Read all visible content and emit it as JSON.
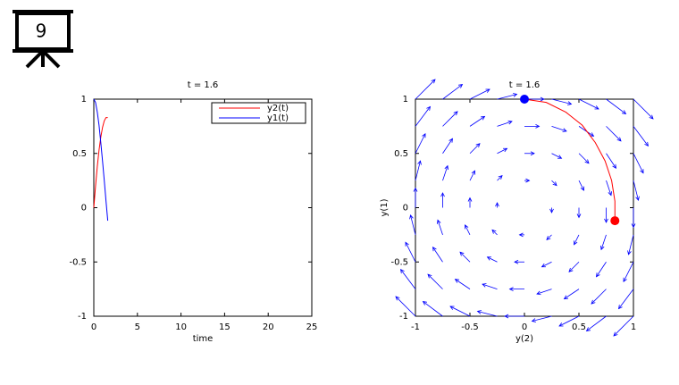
{
  "slide_number": "9",
  "chart_data": [
    {
      "type": "line",
      "title": "t = 1.6",
      "xlabel": "time",
      "xlim": [
        0,
        25
      ],
      "xticks": [
        0,
        5,
        10,
        15,
        20,
        25
      ],
      "ylim": [
        -1,
        1
      ],
      "yticks": [
        -1,
        -0.5,
        0,
        0.5,
        1
      ],
      "x": [
        0,
        0.2,
        0.4,
        0.6,
        0.8,
        1.0,
        1.2,
        1.4,
        1.6
      ],
      "series": [
        {
          "name": "y2(t)",
          "color": "#ff0000",
          "values": [
            0,
            0.2,
            0.38,
            0.53,
            0.65,
            0.74,
            0.8,
            0.83,
            0.83
          ]
        },
        {
          "name": "y1(t)",
          "color": "#0000ff",
          "values": [
            1,
            0.97,
            0.88,
            0.76,
            0.6,
            0.43,
            0.25,
            0.06,
            -0.12
          ]
        }
      ]
    },
    {
      "type": "phase",
      "title": "t = 1.6",
      "xlabel": "y(2)",
      "ylabel": "y(1)",
      "xlim": [
        -1,
        1
      ],
      "xticks": [
        -1,
        -0.5,
        0,
        0.5,
        1
      ],
      "ylim": [
        -1,
        1
      ],
      "yticks": [
        -1,
        -0.5,
        0,
        0.5,
        1
      ],
      "trajectory": {
        "color": "#ff0000",
        "x": [
          0,
          0.2,
          0.38,
          0.53,
          0.65,
          0.74,
          0.8,
          0.83,
          0.83
        ],
        "y": [
          1,
          0.97,
          0.88,
          0.76,
          0.6,
          0.43,
          0.25,
          0.06,
          -0.12
        ]
      },
      "start_color": "#0000ff",
      "end_color": "#ff0000",
      "quiver": {
        "color": "#0000ff",
        "x": [
          -1,
          -0.75,
          -0.5,
          -0.25,
          0,
          0.25,
          0.5,
          0.75,
          1
        ],
        "y": [
          -1,
          -0.75,
          -0.5,
          -0.25,
          0,
          0.25,
          0.5,
          0.75,
          1
        ],
        "u": [
          [
            -1,
            -1,
            -1,
            -1,
            -1,
            -1,
            -1,
            -1,
            -1
          ],
          [
            -0.75,
            -0.75,
            -0.75,
            -0.75,
            -0.75,
            -0.75,
            -0.75,
            -0.75,
            -0.75
          ],
          [
            -0.5,
            -0.5,
            -0.5,
            -0.5,
            -0.5,
            -0.5,
            -0.5,
            -0.5,
            -0.5
          ],
          [
            -0.25,
            -0.25,
            -0.25,
            -0.25,
            -0.25,
            -0.25,
            -0.25,
            -0.25,
            -0.25
          ],
          [
            0,
            0,
            0,
            0,
            0,
            0,
            0,
            0,
            0
          ],
          [
            0.25,
            0.25,
            0.25,
            0.25,
            0.25,
            0.25,
            0.25,
            0.25,
            0.25
          ],
          [
            0.5,
            0.5,
            0.5,
            0.5,
            0.5,
            0.5,
            0.5,
            0.5,
            0.5
          ],
          [
            0.75,
            0.75,
            0.75,
            0.75,
            0.75,
            0.75,
            0.75,
            0.75,
            0.75
          ],
          [
            1,
            1,
            1,
            1,
            1,
            1,
            1,
            1,
            1
          ]
        ],
        "v": [
          [
            1,
            0.75,
            0.5,
            0.25,
            0,
            -0.25,
            -0.5,
            -0.75,
            -1
          ],
          [
            1,
            0.75,
            0.5,
            0.25,
            0,
            -0.25,
            -0.5,
            -0.75,
            -1
          ],
          [
            1,
            0.75,
            0.5,
            0.25,
            0,
            -0.25,
            -0.5,
            -0.75,
            -1
          ],
          [
            1,
            0.75,
            0.5,
            0.25,
            0,
            -0.25,
            -0.5,
            -0.75,
            -1
          ],
          [
            1,
            0.75,
            0.5,
            0.25,
            0,
            -0.25,
            -0.5,
            -0.75,
            -1
          ],
          [
            1,
            0.75,
            0.5,
            0.25,
            0,
            -0.25,
            -0.5,
            -0.75,
            -1
          ],
          [
            1,
            0.75,
            0.5,
            0.25,
            0,
            -0.25,
            -0.5,
            -0.75,
            -1
          ],
          [
            1,
            0.75,
            0.5,
            0.25,
            0,
            -0.25,
            -0.5,
            -0.75,
            -1
          ],
          [
            1,
            0.75,
            0.5,
            0.25,
            0,
            -0.25,
            -0.5,
            -0.75,
            -1
          ]
        ]
      }
    }
  ]
}
